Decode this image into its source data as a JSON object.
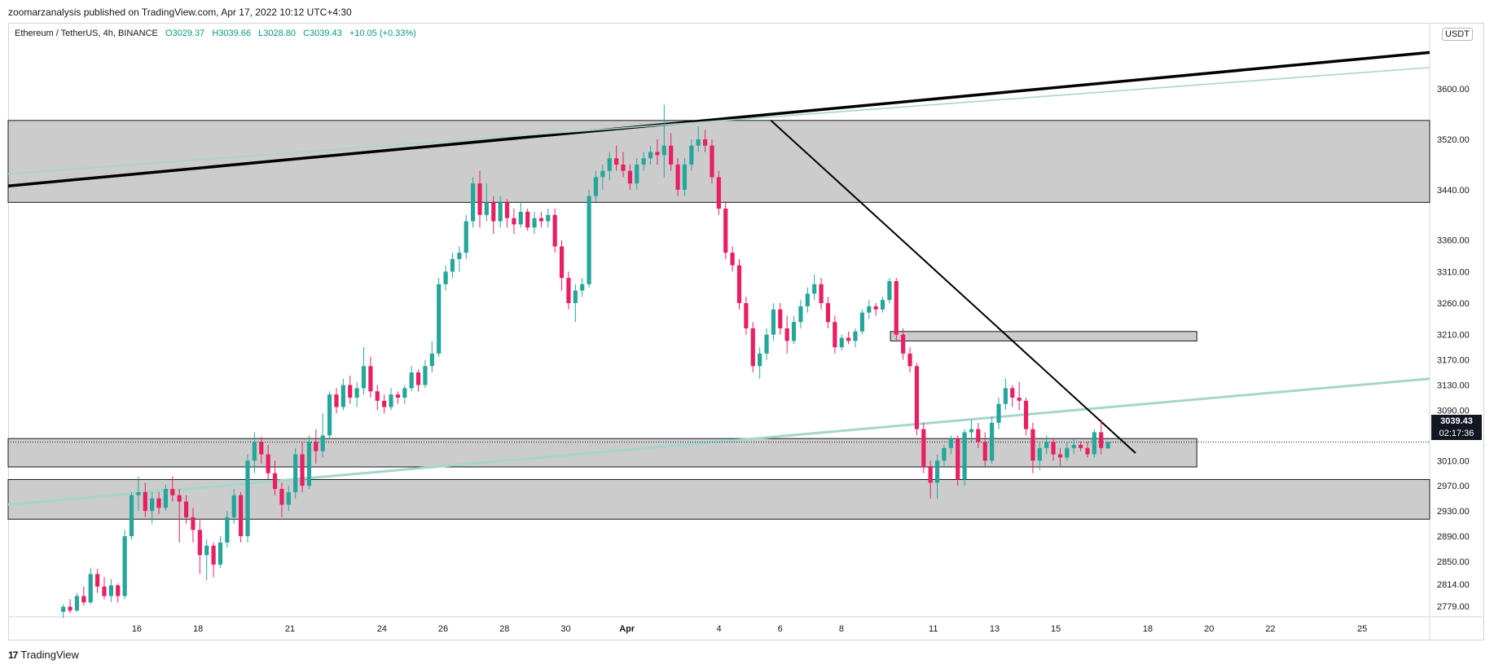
{
  "header": {
    "publisher_line": "zoomarzanalysis published on TradingView.com, Apr 17, 2022 10:12 UTC+4:30"
  },
  "legend": {
    "symbol": "Ethereum / TetherUS, 4h, BINANCE",
    "open": "O3029.37",
    "high": "H3039.66",
    "low": "L3028.80",
    "close": "C3039.43",
    "change": "+10.05 (+0.33%)"
  },
  "price_scale": {
    "currency": "USDT",
    "last_price": "3039.43",
    "countdown": "02:17:36"
  },
  "footer": {
    "brand": "TradingView"
  },
  "colors": {
    "up": "#26a69a",
    "down": "#e91e63",
    "zone": "#cccccc",
    "trend_light": "#a5d6c9"
  },
  "chart_data": {
    "type": "candlestick",
    "title": "",
    "symbol": "ETHUSDT",
    "interval": "4h",
    "x_ticks": [
      {
        "label": "16",
        "t": -14.5
      },
      {
        "label": "18",
        "t": -12.5
      },
      {
        "label": "21",
        "t": -9.5
      },
      {
        "label": "24",
        "t": -6.5
      },
      {
        "label": "26",
        "t": -4.5
      },
      {
        "label": "28",
        "t": -2.5
      },
      {
        "label": "30",
        "t": -0.5
      },
      {
        "label": "Apr",
        "t": 1.5
      },
      {
        "label": "4",
        "t": 4.5
      },
      {
        "label": "6",
        "t": 6.5
      },
      {
        "label": "8",
        "t": 8.5
      },
      {
        "label": "11",
        "t": 11.5
      },
      {
        "label": "13",
        "t": 13.5
      },
      {
        "label": "15",
        "t": 15.5
      },
      {
        "label": "18",
        "t": 18.5
      },
      {
        "label": "20",
        "t": 20.5
      },
      {
        "label": "22",
        "t": 22.5
      },
      {
        "label": "25",
        "t": 25.5
      }
    ],
    "y_ticks": [
      3600,
      3520,
      3440,
      3360,
      3310,
      3260,
      3210,
      3170,
      3130,
      3090,
      3050,
      3010,
      2970,
      2930,
      2890,
      2850,
      2814,
      2779
    ],
    "candles": [
      [
        2770,
        2782,
        2760,
        2778
      ],
      [
        2778,
        2790,
        2768,
        2772
      ],
      [
        2772,
        2800,
        2770,
        2795
      ],
      [
        2795,
        2810,
        2780,
        2785
      ],
      [
        2785,
        2840,
        2782,
        2830
      ],
      [
        2830,
        2838,
        2800,
        2810
      ],
      [
        2810,
        2825,
        2790,
        2795
      ],
      [
        2795,
        2822,
        2785,
        2812
      ],
      [
        2812,
        2815,
        2785,
        2795
      ],
      [
        2795,
        2900,
        2790,
        2890
      ],
      [
        2890,
        2960,
        2885,
        2955
      ],
      [
        2955,
        2985,
        2930,
        2960
      ],
      [
        2960,
        2975,
        2920,
        2930
      ],
      [
        2930,
        2960,
        2910,
        2950
      ],
      [
        2950,
        2960,
        2925,
        2935
      ],
      [
        2935,
        2972,
        2930,
        2965
      ],
      [
        2965,
        2985,
        2945,
        2955
      ],
      [
        2955,
        2965,
        2880,
        2945
      ],
      [
        2945,
        2955,
        2910,
        2920
      ],
      [
        2920,
        2935,
        2880,
        2900
      ],
      [
        2900,
        2915,
        2830,
        2860
      ],
      [
        2860,
        2885,
        2820,
        2875
      ],
      [
        2875,
        2880,
        2825,
        2845
      ],
      [
        2845,
        2890,
        2840,
        2880
      ],
      [
        2880,
        2930,
        2872,
        2920
      ],
      [
        2920,
        2965,
        2910,
        2955
      ],
      [
        2955,
        2960,
        2880,
        2890
      ],
      [
        2890,
        3020,
        2880,
        3010
      ],
      [
        3010,
        3055,
        2990,
        3040
      ],
      [
        3040,
        3048,
        3005,
        3020
      ],
      [
        3020,
        3035,
        2980,
        2990
      ],
      [
        2990,
        3010,
        2955,
        2965
      ],
      [
        2965,
        2975,
        2920,
        2940
      ],
      [
        2940,
        2970,
        2930,
        2960
      ],
      [
        2960,
        3030,
        2950,
        3020
      ],
      [
        3020,
        3040,
        2960,
        2970
      ],
      [
        2970,
        3050,
        2965,
        3040
      ],
      [
        3040,
        3060,
        3005,
        3025
      ],
      [
        3025,
        3085,
        3015,
        3050
      ],
      [
        3050,
        3120,
        3045,
        3115
      ],
      [
        3115,
        3125,
        3085,
        3095
      ],
      [
        3095,
        3140,
        3090,
        3130
      ],
      [
        3130,
        3145,
        3100,
        3110
      ],
      [
        3110,
        3135,
        3095,
        3125
      ],
      [
        3125,
        3190,
        3115,
        3160
      ],
      [
        3160,
        3175,
        3110,
        3120
      ],
      [
        3120,
        3130,
        3090,
        3105
      ],
      [
        3105,
        3115,
        3085,
        3095
      ],
      [
        3095,
        3125,
        3090,
        3115
      ],
      [
        3115,
        3120,
        3100,
        3110
      ],
      [
        3110,
        3130,
        3100,
        3125
      ],
      [
        3125,
        3160,
        3120,
        3150
      ],
      [
        3150,
        3155,
        3120,
        3130
      ],
      [
        3130,
        3170,
        3125,
        3160
      ],
      [
        3160,
        3200,
        3150,
        3180
      ],
      [
        3180,
        3300,
        3175,
        3290
      ],
      [
        3290,
        3320,
        3280,
        3310
      ],
      [
        3310,
        3340,
        3300,
        3330
      ],
      [
        3330,
        3350,
        3310,
        3340
      ],
      [
        3340,
        3400,
        3330,
        3390
      ],
      [
        3390,
        3460,
        3380,
        3450
      ],
      [
        3450,
        3470,
        3380,
        3400
      ],
      [
        3400,
        3450,
        3390,
        3420
      ],
      [
        3420,
        3430,
        3370,
        3390
      ],
      [
        3390,
        3430,
        3380,
        3420
      ],
      [
        3420,
        3425,
        3380,
        3395
      ],
      [
        3395,
        3410,
        3370,
        3385
      ],
      [
        3385,
        3420,
        3380,
        3405
      ],
      [
        3405,
        3410,
        3375,
        3380
      ],
      [
        3380,
        3405,
        3370,
        3395
      ],
      [
        3395,
        3405,
        3380,
        3390
      ],
      [
        3390,
        3410,
        3380,
        3400
      ],
      [
        3400,
        3410,
        3340,
        3350
      ],
      [
        3350,
        3360,
        3280,
        3300
      ],
      [
        3300,
        3310,
        3250,
        3260
      ],
      [
        3260,
        3290,
        3230,
        3280
      ],
      [
        3280,
        3300,
        3270,
        3290
      ],
      [
        3290,
        3440,
        3285,
        3430
      ],
      [
        3430,
        3470,
        3420,
        3460
      ],
      [
        3460,
        3480,
        3440,
        3470
      ],
      [
        3470,
        3500,
        3455,
        3490
      ],
      [
        3490,
        3510,
        3470,
        3480
      ],
      [
        3480,
        3500,
        3460,
        3470
      ],
      [
        3470,
        3480,
        3440,
        3450
      ],
      [
        3450,
        3490,
        3440,
        3480
      ],
      [
        3480,
        3500,
        3470,
        3490
      ],
      [
        3490,
        3510,
        3480,
        3500
      ],
      [
        3500,
        3520,
        3480,
        3495
      ],
      [
        3495,
        3575,
        3460,
        3510
      ],
      [
        3510,
        3530,
        3470,
        3480
      ],
      [
        3480,
        3490,
        3430,
        3440
      ],
      [
        3440,
        3490,
        3430,
        3480
      ],
      [
        3480,
        3520,
        3470,
        3510
      ],
      [
        3510,
        3540,
        3500,
        3520
      ],
      [
        3520,
        3535,
        3500,
        3510
      ],
      [
        3510,
        3520,
        3450,
        3460
      ],
      [
        3460,
        3470,
        3400,
        3410
      ],
      [
        3410,
        3420,
        3330,
        3340
      ],
      [
        3340,
        3350,
        3310,
        3320
      ],
      [
        3320,
        3330,
        3250,
        3260
      ],
      [
        3260,
        3270,
        3210,
        3220
      ],
      [
        3220,
        3230,
        3150,
        3160
      ],
      [
        3160,
        3190,
        3140,
        3180
      ],
      [
        3180,
        3220,
        3170,
        3210
      ],
      [
        3210,
        3260,
        3200,
        3250
      ],
      [
        3250,
        3260,
        3210,
        3220
      ],
      [
        3220,
        3240,
        3180,
        3200
      ],
      [
        3200,
        3240,
        3195,
        3230
      ],
      [
        3230,
        3265,
        3220,
        3255
      ],
      [
        3255,
        3285,
        3245,
        3275
      ],
      [
        3275,
        3305,
        3265,
        3290
      ],
      [
        3290,
        3300,
        3250,
        3260
      ],
      [
        3260,
        3270,
        3220,
        3230
      ],
      [
        3230,
        3240,
        3180,
        3190
      ],
      [
        3190,
        3210,
        3185,
        3205
      ],
      [
        3205,
        3215,
        3195,
        3200
      ],
      [
        3200,
        3220,
        3190,
        3215
      ],
      [
        3215,
        3250,
        3210,
        3245
      ],
      [
        3245,
        3265,
        3235,
        3255
      ],
      [
        3255,
        3260,
        3240,
        3250
      ],
      [
        3250,
        3270,
        3245,
        3265
      ],
      [
        3265,
        3300,
        3260,
        3295
      ],
      [
        3295,
        3300,
        3200,
        3210
      ],
      [
        3210,
        3220,
        3170,
        3180
      ],
      [
        3180,
        3190,
        3150,
        3160
      ],
      [
        3160,
        3165,
        3050,
        3060
      ],
      [
        3060,
        3070,
        2990,
        3000
      ],
      [
        3000,
        3010,
        2950,
        2975
      ],
      [
        2975,
        3020,
        2950,
        3010
      ],
      [
        3010,
        3035,
        3000,
        3030
      ],
      [
        3030,
        3050,
        3020,
        3045
      ],
      [
        3045,
        3050,
        2970,
        2980
      ],
      [
        2980,
        3060,
        2970,
        3055
      ],
      [
        3055,
        3075,
        3040,
        3060
      ],
      [
        3060,
        3070,
        3030,
        3040
      ],
      [
        3040,
        3055,
        3000,
        3010
      ],
      [
        3010,
        3080,
        3005,
        3070
      ],
      [
        3070,
        3110,
        3060,
        3100
      ],
      [
        3100,
        3140,
        3090,
        3125
      ],
      [
        3125,
        3130,
        3095,
        3110
      ],
      [
        3110,
        3135,
        3090,
        3105
      ],
      [
        3105,
        3110,
        3050,
        3060
      ],
      [
        3060,
        3070,
        2990,
        3010
      ],
      [
        3010,
        3040,
        2995,
        3030
      ],
      [
        3030,
        3050,
        3020,
        3040
      ],
      [
        3040,
        3045,
        3010,
        3020
      ],
      [
        3020,
        3030,
        3000,
        3015
      ],
      [
        3015,
        3040,
        3010,
        3030
      ],
      [
        3030,
        3045,
        3020,
        3035
      ],
      [
        3035,
        3040,
        3025,
        3030
      ],
      [
        3030,
        3040,
        3015,
        3020
      ],
      [
        3020,
        3060,
        3015,
        3055
      ],
      [
        3055,
        3075,
        3020,
        3030
      ],
      [
        3029.37,
        3039.66,
        3028.8,
        3039.43
      ]
    ],
    "zones": [
      {
        "from": 3420,
        "to": 3550,
        "start_t": -18.7,
        "end_t": 27.7
      },
      {
        "from": 3200,
        "to": 3215,
        "start_t": 10.1,
        "end_t": 20.1
      },
      {
        "from": 3000,
        "to": 3045,
        "start_t": -18.7,
        "end_t": 20.1
      },
      {
        "from": 2917,
        "to": 2980,
        "start_t": -18.7,
        "end_t": 27.7
      }
    ],
    "trendlines": [
      {
        "kind": "heavy",
        "p1": [
          -18.7,
          3446
        ],
        "p2": [
          27.7,
          3658
        ]
      },
      {
        "kind": "light",
        "p1": [
          -18.7,
          3465
        ],
        "p2": [
          27.7,
          3634
        ]
      },
      {
        "kind": "light",
        "p1": [
          -18.7,
          2940
        ],
        "p2": [
          27.7,
          3140
        ]
      },
      {
        "kind": "thin",
        "p1": [
          6.2,
          3550
        ],
        "p2": [
          18.1,
          3022
        ]
      }
    ],
    "last_price": 3039.43,
    "xlim": [
      -18.7,
      27.7
    ],
    "ylim": [
      2762,
      3705
    ]
  }
}
